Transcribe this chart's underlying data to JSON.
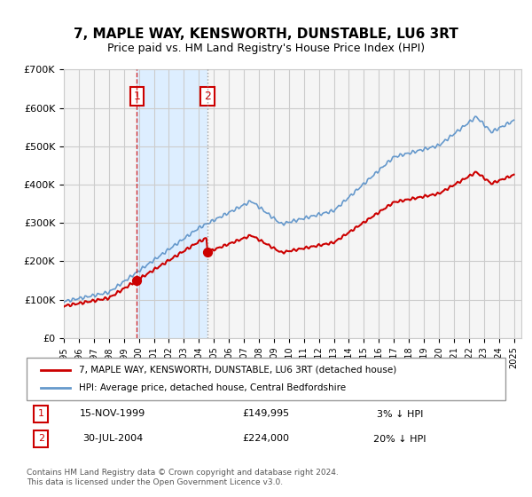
{
  "title": "7, MAPLE WAY, KENSWORTH, DUNSTABLE, LU6 3RT",
  "subtitle": "Price paid vs. HM Land Registry's House Price Index (HPI)",
  "legend_line1": "7, MAPLE WAY, KENSWORTH, DUNSTABLE, LU6 3RT (detached house)",
  "legend_line2": "HPI: Average price, detached house, Central Bedfordshire",
  "footnote1": "Contains HM Land Registry data © Crown copyright and database right 2024.",
  "footnote2": "This data is licensed under the Open Government Licence v3.0.",
  "sale1_date": "15-NOV-1999",
  "sale1_price": "£149,995",
  "sale1_hpi": "3% ↓ HPI",
  "sale1_x": 1999.87,
  "sale2_date": "30-JUL-2004",
  "sale2_price": "£224,000",
  "sale2_hpi": "20% ↓ HPI",
  "sale2_x": 2004.58,
  "ylim": [
    0,
    700000
  ],
  "xlim_start": 1995.0,
  "xlim_end": 2025.5,
  "red_color": "#cc0000",
  "blue_color": "#6699cc",
  "shading_color": "#ddeeff",
  "grid_color": "#cccccc",
  "background_color": "#f5f5f5"
}
